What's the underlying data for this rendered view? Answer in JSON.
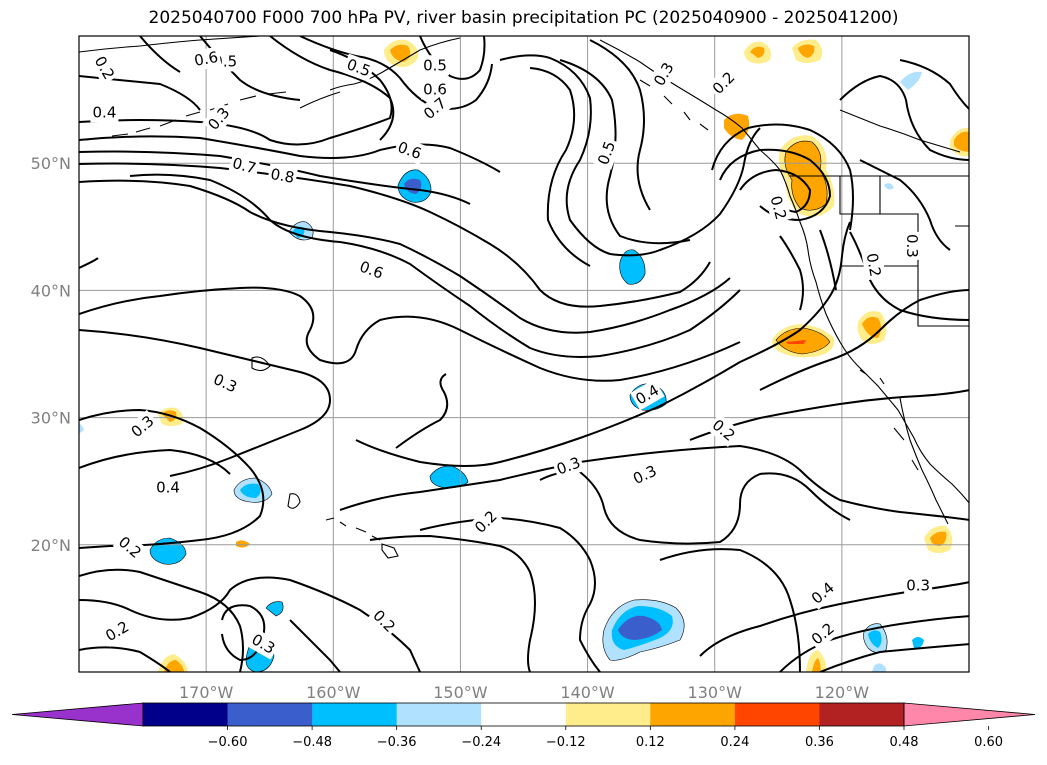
{
  "title": "2025040700 F000 700 hPa PV, river basin precipitation PC (2025040900 - 2025041200)",
  "map": {
    "lon_range": [
      -180,
      -110
    ],
    "lat_range": [
      10,
      60
    ],
    "lon_ticks": [
      {
        "value": -170,
        "label": "170°W"
      },
      {
        "value": -160,
        "label": "160°W"
      },
      {
        "value": -150,
        "label": "150°W"
      },
      {
        "value": -140,
        "label": "140°W"
      },
      {
        "value": -130,
        "label": "130°W"
      },
      {
        "value": -120,
        "label": "120°W"
      }
    ],
    "lat_ticks": [
      {
        "value": 50,
        "label": "50°N"
      },
      {
        "value": 40,
        "label": "40°N"
      },
      {
        "value": 30,
        "label": "30°N"
      },
      {
        "value": 20,
        "label": "20°N"
      }
    ],
    "gridlines": true
  },
  "colorbar": {
    "colors": [
      "#9932cc",
      "#00008b",
      "#3a5fcd",
      "#00bfff",
      "#b0e2ff",
      "#ffffff",
      "#ffec8b",
      "#ffa500",
      "#ff4500",
      "#b22222",
      "#ff88aa"
    ],
    "tick_labels": [
      "−0.60",
      "−0.48",
      "−0.36",
      "−0.24",
      "−0.12",
      "0.12",
      "0.24",
      "0.36",
      "0.48",
      "0.60"
    ],
    "extend": "both"
  },
  "contour_labels": [
    {
      "text": "0.2",
      "lon": -178.0,
      "lat": 57.5,
      "rot": 60
    },
    {
      "text": "0.4",
      "lon": -178.0,
      "lat": 54.0,
      "rot": 0
    },
    {
      "text": "0.3",
      "lon": -169.0,
      "lat": 53.5,
      "rot": -50
    },
    {
      "text": "0.5",
      "lon": -168.5,
      "lat": 58.0,
      "rot": 0
    },
    {
      "text": "0.6",
      "lon": -170.0,
      "lat": 58.2,
      "rot": -10
    },
    {
      "text": "0.5",
      "lon": -158.0,
      "lat": 57.5,
      "rot": 20
    },
    {
      "text": "0.5",
      "lon": -152.0,
      "lat": 57.7,
      "rot": 0
    },
    {
      "text": "0.6",
      "lon": -152.0,
      "lat": 55.8,
      "rot": 0
    },
    {
      "text": "0.7",
      "lon": -152.0,
      "lat": 54.3,
      "rot": -40
    },
    {
      "text": "0.6",
      "lon": -154.0,
      "lat": 51.0,
      "rot": 20
    },
    {
      "text": "0.7",
      "lon": -167.0,
      "lat": 49.8,
      "rot": 15
    },
    {
      "text": "0.8",
      "lon": -164.0,
      "lat": 49.0,
      "rot": 10
    },
    {
      "text": "0.6",
      "lon": -157.0,
      "lat": 41.6,
      "rot": 20
    },
    {
      "text": "0.5",
      "lon": -138.5,
      "lat": 50.8,
      "rot": -70
    },
    {
      "text": "0.3",
      "lon": -134.0,
      "lat": 57.0,
      "rot": -60
    },
    {
      "text": "0.2",
      "lon": -129.3,
      "lat": 56.3,
      "rot": -45
    },
    {
      "text": "0.2",
      "lon": -125.0,
      "lat": 46.5,
      "rot": 75
    },
    {
      "text": "0.3",
      "lon": -114.5,
      "lat": 43.5,
      "rot": 90
    },
    {
      "text": "0.2",
      "lon": -117.5,
      "lat": 42.0,
      "rot": 80
    },
    {
      "text": "0.3",
      "lon": -168.5,
      "lat": 32.7,
      "rot": 25
    },
    {
      "text": "0.3",
      "lon": -175.0,
      "lat": 29.3,
      "rot": -40
    },
    {
      "text": "0.4",
      "lon": -173.0,
      "lat": 24.5,
      "rot": 0
    },
    {
      "text": "0.2",
      "lon": -176.0,
      "lat": 19.8,
      "rot": 40
    },
    {
      "text": "0.2",
      "lon": -177.0,
      "lat": 13.2,
      "rot": -30
    },
    {
      "text": "0.3",
      "lon": -165.5,
      "lat": 12.2,
      "rot": 30
    },
    {
      "text": "0.4",
      "lon": -135.3,
      "lat": 31.8,
      "rot": -30
    },
    {
      "text": "0.3",
      "lon": -141.5,
      "lat": 26.2,
      "rot": -20
    },
    {
      "text": "0.3",
      "lon": -135.5,
      "lat": 25.5,
      "rot": -25
    },
    {
      "text": "0.2",
      "lon": -148.0,
      "lat": 21.8,
      "rot": -45
    },
    {
      "text": "0.2",
      "lon": -129.3,
      "lat": 29.0,
      "rot": 40
    },
    {
      "text": "0.2",
      "lon": -156.0,
      "lat": 14.0,
      "rot": 45
    },
    {
      "text": "0.4",
      "lon": -121.5,
      "lat": 16.2,
      "rot": -40
    },
    {
      "text": "0.2",
      "lon": -121.5,
      "lat": 13.0,
      "rot": -40
    },
    {
      "text": "0.3",
      "lon": -114.0,
      "lat": 16.8,
      "rot": 0
    }
  ]
}
